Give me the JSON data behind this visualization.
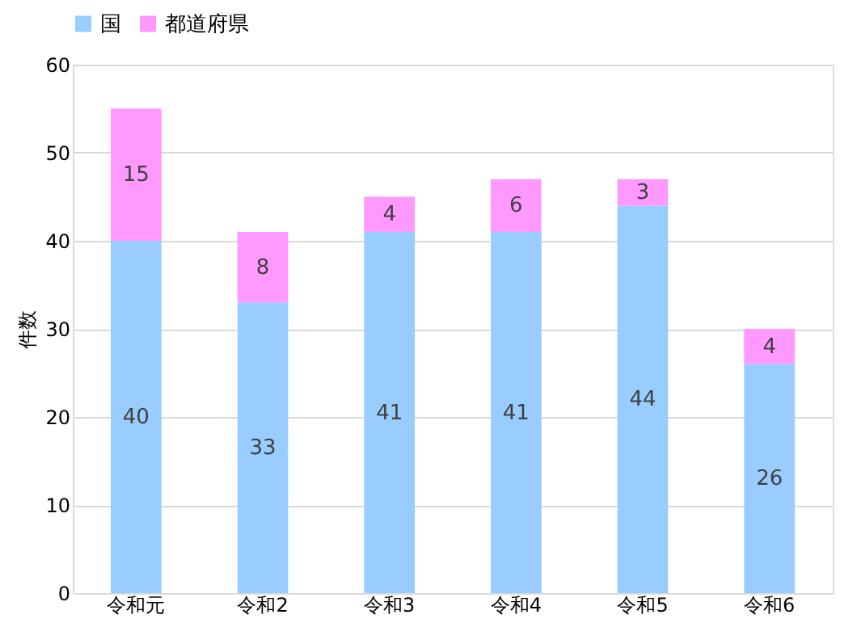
{
  "chart_data": {
    "type": "bar",
    "stacked": true,
    "ylabel": "件数",
    "categories": [
      "令和元",
      "令和2",
      "令和3",
      "令和4",
      "令和5",
      "令和6"
    ],
    "series": [
      {
        "name": "国",
        "color": "#99ccff",
        "values": [
          40,
          33,
          41,
          41,
          44,
          26
        ]
      },
      {
        "name": "都道府県",
        "color": "#ff99ff",
        "values": [
          15,
          8,
          4,
          6,
          3,
          4
        ]
      }
    ],
    "ylim": [
      0,
      60
    ],
    "yticks": [
      0,
      10,
      20,
      30,
      40,
      50,
      60
    ],
    "grid": "y",
    "legend": "top",
    "data_labels": true
  }
}
